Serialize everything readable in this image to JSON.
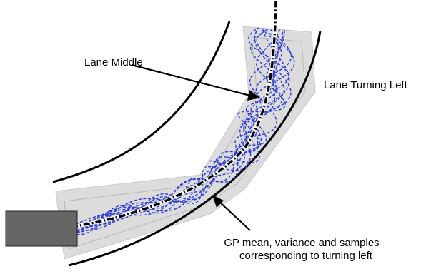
{
  "labels": {
    "lane_middle": "Lane Middle",
    "lane_turning_left": "Lane Turning Left",
    "gp_line1": "GP mean, variance and samples",
    "gp_line2": "corresponding to turning left"
  },
  "colors": {
    "samples": "#2b3ad6",
    "variance_band": "#dcdcdc",
    "band_outline": "#b5b5b5",
    "mean_path": "#000000",
    "vehicle": "#666666",
    "road_edges": "#000000"
  },
  "icons": {
    "vehicle": "vehicle-box"
  }
}
